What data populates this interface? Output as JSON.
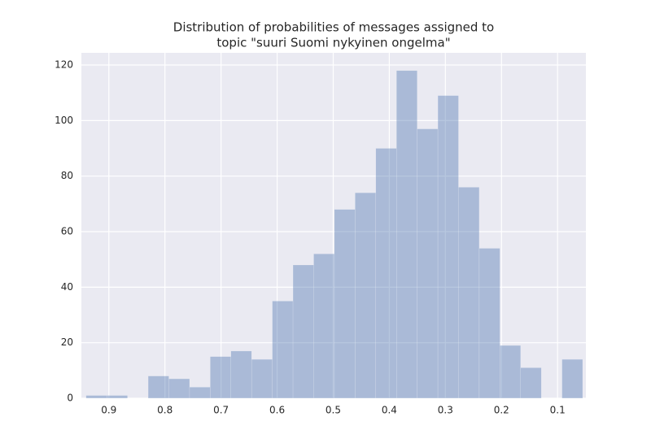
{
  "chart_data": {
    "type": "histogram",
    "title": [
      "Distribution of probabilities of messages assigned to",
      "topic \"suuri Suomi nykyinen ongelma\""
    ],
    "bins": [
      0.9406,
      0.9037,
      0.8668,
      0.8299,
      0.793,
      0.7561,
      0.7193,
      0.6824,
      0.6455,
      0.6086,
      0.5717,
      0.5348,
      0.4979,
      0.461,
      0.4241,
      0.3872,
      0.3503,
      0.3134,
      0.2766,
      0.2397,
      0.2028,
      0.1659,
      0.129,
      0.0921,
      0.0553
    ],
    "values": [
      1,
      1,
      0,
      8,
      7,
      4,
      15,
      17,
      14,
      35,
      48,
      52,
      68,
      74,
      90,
      118,
      97,
      109,
      76,
      54,
      19,
      11,
      0,
      14
    ],
    "color": "#4c72b0",
    "alpha": 0.4,
    "xlim": [
      0.949,
      0.0495
    ],
    "xticks": [
      0.9,
      0.8,
      0.7,
      0.6,
      0.5,
      0.4,
      0.3,
      0.2,
      0.1
    ],
    "ylim": [
      0,
      124.4
    ],
    "yticks": [
      0,
      20,
      40,
      60,
      80,
      100,
      120
    ],
    "grid": true
  }
}
